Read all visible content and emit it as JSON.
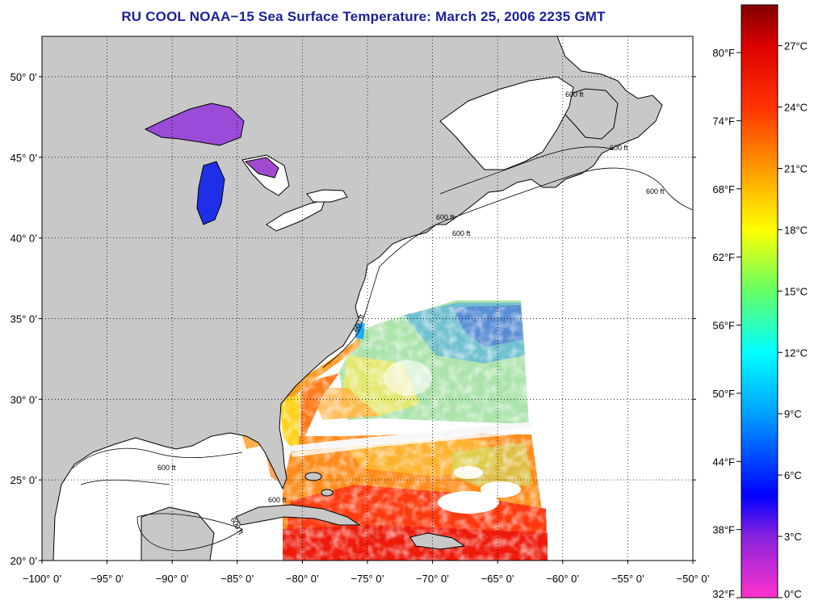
{
  "title": "RU COOL  NOAA−15  Sea Surface Temperature:  March 25, 2006 2235 GMT",
  "map": {
    "lon_range": [
      -100,
      -50
    ],
    "lat_range": [
      20,
      52.5
    ],
    "lon_ticks": [
      {
        "value": -100,
        "label": "−100° 0’"
      },
      {
        "value": -95,
        "label": "−95° 0’"
      },
      {
        "value": -90,
        "label": "−90° 0’"
      },
      {
        "value": -85,
        "label": "−85° 0’"
      },
      {
        "value": -80,
        "label": "−80° 0’"
      },
      {
        "value": -75,
        "label": "−75° 0’"
      },
      {
        "value": -70,
        "label": "−70° 0’"
      },
      {
        "value": -65,
        "label": "−65° 0’"
      },
      {
        "value": -60,
        "label": "−60° 0’"
      },
      {
        "value": -55,
        "label": "−55° 0’"
      },
      {
        "value": -50,
        "label": "−50° 0’"
      }
    ],
    "lat_ticks": [
      {
        "value": 50,
        "label": "50° 0’"
      },
      {
        "value": 45,
        "label": "45° 0’"
      },
      {
        "value": 40,
        "label": "40° 0’"
      },
      {
        "value": 35,
        "label": "35° 0’"
      },
      {
        "value": 30,
        "label": "30° 0’"
      },
      {
        "value": 25,
        "label": "25° 0’"
      },
      {
        "value": 20,
        "label": "20° 0’"
      }
    ],
    "isobath_label": "600 ft",
    "grid": "dotted",
    "colors": {
      "land": "#c8c8c8",
      "ocean": "#ffffff",
      "no_data": "#ffffff"
    }
  },
  "colorbar": {
    "range_c": [
      0,
      29
    ],
    "fahrenheit_labels": [
      "80°F",
      "74°F",
      "68°F",
      "62°F",
      "56°F",
      "50°F",
      "44°F",
      "38°F",
      "32°F"
    ],
    "celsius_labels": [
      "27°C",
      "24°C",
      "21°C",
      "18°C",
      "15°C",
      "12°C",
      "9°C",
      "6°C",
      "3°C",
      "0°C"
    ],
    "stops": [
      {
        "c": 0,
        "color": "#ff33cc"
      },
      {
        "c": 3,
        "color": "#8822dd"
      },
      {
        "c": 5,
        "color": "#0000ff"
      },
      {
        "c": 9,
        "color": "#00a0ff"
      },
      {
        "c": 12,
        "color": "#00ffff"
      },
      {
        "c": 15,
        "color": "#66ff66"
      },
      {
        "c": 18,
        "color": "#ffff00"
      },
      {
        "c": 21,
        "color": "#ff9900"
      },
      {
        "c": 24,
        "color": "#ff3300"
      },
      {
        "c": 27,
        "color": "#dd0000"
      },
      {
        "c": 29,
        "color": "#800000"
      }
    ]
  }
}
